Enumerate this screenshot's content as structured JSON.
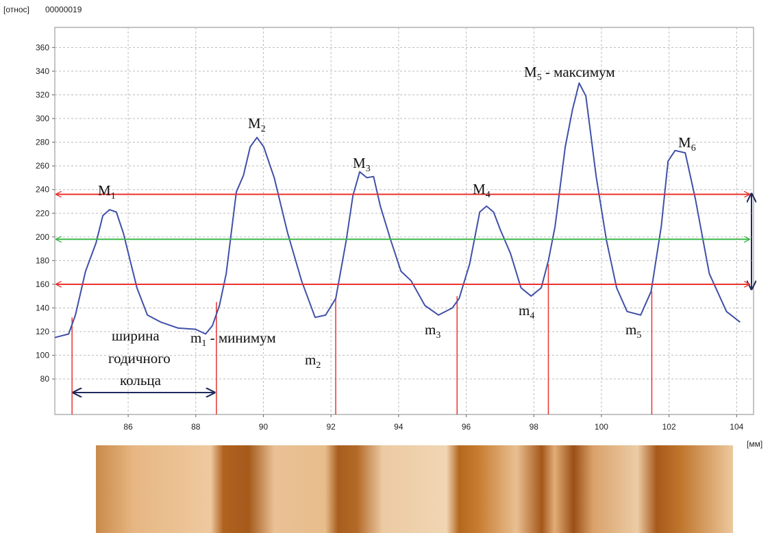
{
  "chart_data": {
    "type": "line",
    "y_unit_label": "[относ]",
    "sample_id": "00000019",
    "x_unit_label": "[мм]",
    "x": [
      83.83,
      84.24,
      84.44,
      84.74,
      85.05,
      85.25,
      85.45,
      85.65,
      85.86,
      86.06,
      86.26,
      86.57,
      86.97,
      87.48,
      87.99,
      88.29,
      88.49,
      88.7,
      88.9,
      89.2,
      89.41,
      89.61,
      89.81,
      90.01,
      90.32,
      90.72,
      91.13,
      91.53,
      91.84,
      92.14,
      92.45,
      92.65,
      92.85,
      93.06,
      93.26,
      93.46,
      93.77,
      94.07,
      94.37,
      94.78,
      95.18,
      95.59,
      95.79,
      96.1,
      96.4,
      96.6,
      96.81,
      97.01,
      97.31,
      97.62,
      97.92,
      98.22,
      98.43,
      98.63,
      98.93,
      99.14,
      99.34,
      99.54,
      99.85,
      100.15,
      100.45,
      100.76,
      101.16,
      101.47,
      101.77,
      101.97,
      102.18,
      102.48,
      102.78,
      103.19,
      103.7,
      104.1
    ],
    "values": [
      115,
      118,
      134,
      171,
      195,
      218,
      223,
      221,
      203,
      180,
      157,
      134,
      128,
      123,
      122,
      118,
      125,
      142,
      169,
      238,
      252,
      276,
      284,
      276,
      250,
      203,
      163,
      132,
      134,
      148,
      197,
      235,
      255,
      250,
      251,
      226,
      197,
      171,
      163,
      142,
      134,
      140,
      148,
      177,
      221,
      226,
      221,
      206,
      186,
      157,
      150,
      157,
      180,
      209,
      276,
      307,
      330,
      319,
      250,
      197,
      157,
      137,
      134,
      154,
      209,
      264,
      273,
      271,
      232,
      169,
      137,
      128
    ],
    "color": "#3f4fa8",
    "xlim": [
      83.83,
      104.5
    ],
    "ylim": [
      50,
      377
    ],
    "xticks": [
      86,
      88,
      90,
      92,
      94,
      96,
      98,
      100,
      102,
      104
    ],
    "yticks": [
      80,
      100,
      120,
      140,
      160,
      180,
      200,
      220,
      240,
      260,
      280,
      300,
      320,
      340,
      360
    ],
    "grid": true,
    "levels": [
      {
        "value": 236,
        "color": "#e8332f"
      },
      {
        "value": 198,
        "color": "#3cb84a"
      },
      {
        "value": 160,
        "color": "#e8332f"
      }
    ],
    "ring_boundaries": [
      {
        "x": 84.34,
        "value": 132
      },
      {
        "x": 88.61,
        "value": 145
      },
      {
        "x": 92.14,
        "value": 148
      },
      {
        "x": 95.73,
        "value": 150
      },
      {
        "x": 98.43,
        "value": 177
      },
      {
        "x": 101.49,
        "value": 154
      }
    ],
    "annotations": [
      {
        "text": "M",
        "sub": "1"
      },
      {
        "text": "M",
        "sub": "2"
      },
      {
        "text": "M",
        "sub": "3"
      },
      {
        "text": "M",
        "sub": "4"
      },
      {
        "text": "M",
        "sub": "5",
        "suffix": " - максимум"
      },
      {
        "text": "M",
        "sub": "6"
      },
      {
        "text": "m",
        "sub": "1",
        "suffix": " - минимум"
      },
      {
        "text": "m",
        "sub": "2"
      },
      {
        "text": "m",
        "sub": "3"
      },
      {
        "text": "m",
        "sub": "4"
      },
      {
        "text": "m",
        "sub": "5"
      }
    ],
    "ring_width_label": [
      "ширина",
      "годичного",
      "кольца"
    ]
  }
}
